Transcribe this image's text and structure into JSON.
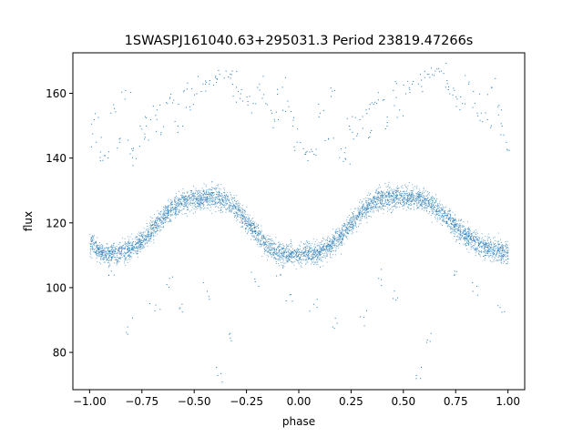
{
  "chart_data": {
    "type": "scatter",
    "title": "1SWASPJ161040.63+295031.3 Period 23819.47266s",
    "xlabel": "phase",
    "ylabel": "flux",
    "xlim": [
      -1.08,
      1.08
    ],
    "ylim": [
      68.5,
      172.5
    ],
    "xticks": [
      -1.0,
      -0.75,
      -0.5,
      -0.25,
      0.0,
      0.25,
      0.5,
      0.75,
      1.0
    ],
    "xtick_labels": [
      "−1.00",
      "−0.75",
      "−0.50",
      "−0.25",
      "0.00",
      "0.25",
      "0.50",
      "0.75",
      "1.00"
    ],
    "yticks": [
      80,
      100,
      120,
      140,
      160
    ],
    "ytick_labels": [
      "80",
      "100",
      "120",
      "140",
      "160"
    ],
    "grid": false,
    "point_color": "#1f77b4",
    "description_of_density": "phase-folded light curve repeated over two cycles",
    "series": [
      {
        "x": [
          -1.0,
          -0.975,
          -0.95,
          -0.925,
          -0.9,
          -0.875,
          -0.85,
          -0.825,
          -0.8,
          -0.775,
          -0.75,
          -0.725,
          -0.7,
          -0.675,
          -0.65,
          -0.625,
          -0.6,
          -0.575,
          -0.55,
          -0.525,
          -0.5,
          -0.475,
          -0.45,
          -0.425,
          -0.4,
          -0.375,
          -0.35,
          -0.325,
          -0.3,
          -0.275,
          -0.25,
          -0.225,
          -0.2,
          -0.175,
          -0.15,
          -0.125,
          -0.1,
          -0.075,
          -0.05,
          -0.025,
          0.0,
          0.025,
          0.05,
          0.075,
          0.1,
          0.125,
          0.15,
          0.175,
          0.2,
          0.225,
          0.25,
          0.275,
          0.3,
          0.325,
          0.35,
          0.375,
          0.4,
          0.425,
          0.45,
          0.475,
          0.5,
          0.525,
          0.55,
          0.575,
          0.6,
          0.625,
          0.65,
          0.675,
          0.7,
          0.725,
          0.75,
          0.775,
          0.8,
          0.825,
          0.85,
          0.875,
          0.9,
          0.925,
          0.95,
          0.975,
          1.0
        ],
        "y": [
          114,
          112,
          111,
          110.5,
          110.5,
          110.5,
          111,
          111.5,
          112,
          113,
          114.5,
          116,
          118,
          120,
          122,
          123.5,
          125,
          126,
          127,
          127.5,
          127.5,
          127.5,
          128,
          128,
          128,
          127.5,
          127,
          126,
          124.5,
          122.5,
          120.5,
          118.5,
          116.5,
          114.5,
          113,
          112,
          111,
          110.5,
          110.5,
          110.5,
          110.5,
          110.5,
          110.5,
          110.5,
          111,
          112,
          113,
          114.5,
          116,
          118,
          120,
          122,
          123.5,
          125,
          126,
          127,
          127.5,
          128,
          128,
          128,
          128,
          128,
          128,
          127.5,
          127,
          126,
          125,
          123.5,
          122,
          120.5,
          119,
          117.5,
          116,
          115,
          114,
          113,
          112.5,
          112,
          111.5,
          111,
          111
        ]
      }
    ],
    "scatter_spread": 5,
    "outliers": [
      [
        -0.98,
        152
      ],
      [
        -0.97,
        145
      ],
      [
        -0.95,
        142
      ],
      [
        -0.93,
        141
      ],
      [
        -0.9,
        154
      ],
      [
        -0.86,
        146
      ],
      [
        -0.83,
        161
      ],
      [
        -0.8,
        143
      ],
      [
        -0.78,
        140
      ],
      [
        -0.76,
        150
      ],
      [
        -0.74,
        146
      ],
      [
        -0.71,
        152
      ],
      [
        -0.68,
        155
      ],
      [
        -0.66,
        148
      ],
      [
        -0.63,
        157
      ],
      [
        -0.6,
        158
      ],
      [
        -0.58,
        150
      ],
      [
        -0.55,
        161
      ],
      [
        -0.52,
        155
      ],
      [
        -0.49,
        160
      ],
      [
        -0.46,
        163
      ],
      [
        -0.43,
        163
      ],
      [
        -0.4,
        165
      ],
      [
        -0.38,
        166
      ],
      [
        -0.35,
        167
      ],
      [
        -0.32,
        167
      ],
      [
        -0.3,
        162
      ],
      [
        -0.28,
        160
      ],
      [
        -0.25,
        159
      ],
      [
        -0.22,
        157
      ],
      [
        -0.19,
        163
      ],
      [
        -0.16,
        157
      ],
      [
        -0.13,
        154
      ],
      [
        -0.1,
        152
      ],
      [
        -0.08,
        162
      ],
      [
        -0.05,
        156
      ],
      [
        -0.03,
        150
      ],
      [
        -0.01,
        145
      ],
      [
        0.02,
        143
      ],
      [
        0.05,
        142
      ],
      [
        0.08,
        141
      ],
      [
        0.1,
        154
      ],
      [
        0.14,
        146
      ],
      [
        0.17,
        161
      ],
      [
        0.2,
        143
      ],
      [
        0.22,
        140
      ],
      [
        0.24,
        150
      ],
      [
        0.26,
        146
      ],
      [
        0.29,
        152
      ],
      [
        0.32,
        155
      ],
      [
        0.34,
        148
      ],
      [
        0.37,
        157
      ],
      [
        0.4,
        158
      ],
      [
        0.42,
        150
      ],
      [
        0.45,
        161
      ],
      [
        0.48,
        155
      ],
      [
        0.51,
        160
      ],
      [
        0.54,
        163
      ],
      [
        0.57,
        163
      ],
      [
        0.6,
        165
      ],
      [
        0.62,
        166
      ],
      [
        0.65,
        167
      ],
      [
        0.68,
        167
      ],
      [
        0.7,
        162
      ],
      [
        0.72,
        160
      ],
      [
        0.75,
        159
      ],
      [
        0.78,
        157
      ],
      [
        0.81,
        163
      ],
      [
        0.84,
        157
      ],
      [
        0.87,
        154
      ],
      [
        0.9,
        152
      ],
      [
        0.92,
        162
      ],
      [
        0.95,
        156
      ],
      [
        0.97,
        150
      ],
      [
        0.99,
        145
      ],
      [
        -0.91,
        104
      ],
      [
        -0.82,
        88
      ],
      [
        -0.69,
        93
      ],
      [
        -0.62,
        103
      ],
      [
        -0.56,
        95
      ],
      [
        -0.44,
        99
      ],
      [
        -0.39,
        73
      ],
      [
        -0.33,
        86
      ],
      [
        -0.21,
        102
      ],
      [
        -0.09,
        104
      ],
      [
        -0.04,
        98
      ],
      [
        0.07,
        95
      ],
      [
        0.16,
        88
      ],
      [
        0.31,
        91
      ],
      [
        0.38,
        103
      ],
      [
        0.47,
        97
      ],
      [
        0.56,
        73
      ],
      [
        0.63,
        86
      ],
      [
        0.74,
        104
      ],
      [
        0.83,
        99
      ],
      [
        0.96,
        94
      ]
    ]
  }
}
